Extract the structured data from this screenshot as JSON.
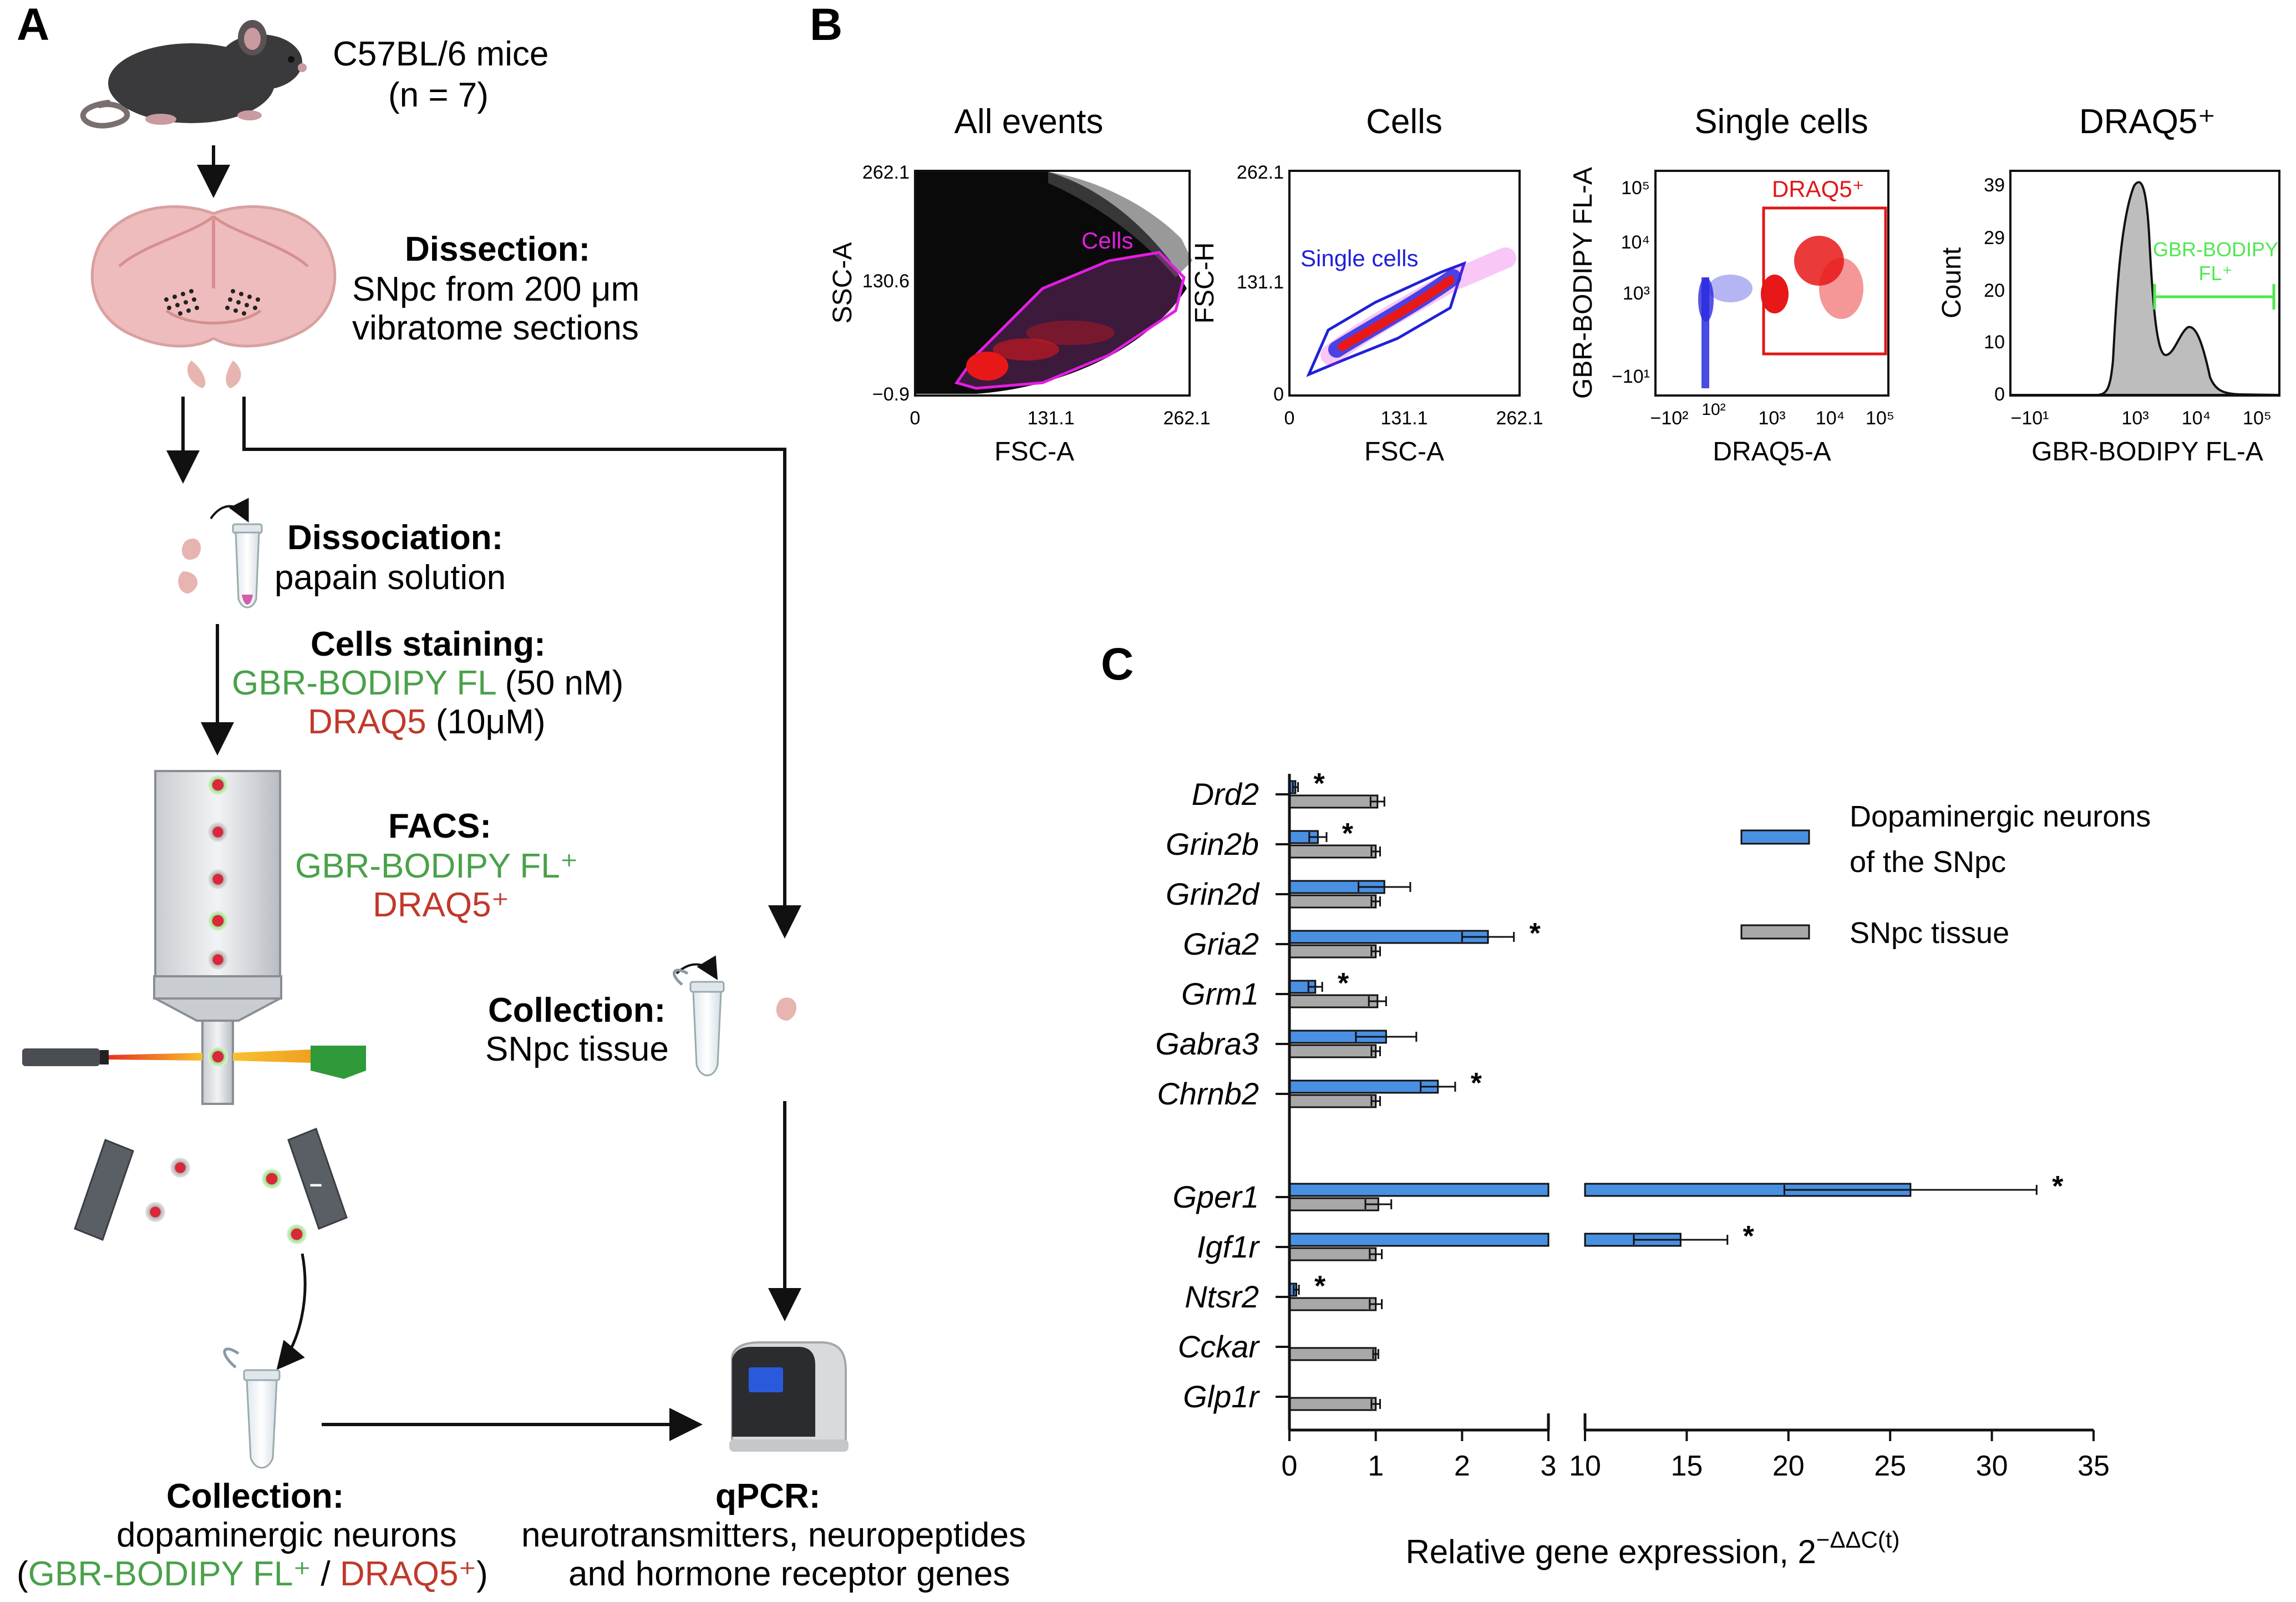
{
  "panels": {
    "a": {
      "letter": "A",
      "mice_title": "C57BL/6 mice",
      "mice_n": "(n = 7)",
      "dissection_title": "Dissection:",
      "dissection_l1": "SNpc from 200 μm",
      "dissection_l2": "vibratome sections",
      "dissociation_title": "Dissociation:",
      "dissociation_l1": "papain solution",
      "staining_title": "Cells staining:",
      "staining_dye1": "GBR-BODIPY FL",
      "staining_conc1": " (50 nM)",
      "staining_dye2": "DRAQ5",
      "staining_conc2": " (10μM)",
      "facs_title": "FACS:",
      "facs_l1": "GBR-BODIPY FL⁺",
      "facs_l2": "DRAQ5⁺",
      "coll_tissue_title": "Collection:",
      "coll_tissue_l1": "SNpc tissue",
      "coll_neur_title": "Collection:",
      "coll_neur_l1": "dopaminergic neurons",
      "coll_neur_open": "(",
      "coll_neur_dye1": "GBR-BODIPY FL⁺",
      "coll_neur_sep": " / ",
      "coll_neur_dye2": "DRAQ5⁺",
      "coll_neur_close": ")",
      "qpcr_title": "qPCR:",
      "qpcr_l1": "neurotransmitters, neuropeptides",
      "qpcr_l2": "and hormone receptor genes",
      "sort_plus": "+",
      "sort_minus": "−"
    },
    "b": {
      "letter": "B",
      "plot1": {
        "title": "All events",
        "xlabel": "FSC-A",
        "ylabel": "SSC-A",
        "yticks": [
          "262.1",
          "130.6",
          "−0.9"
        ],
        "xticks": [
          "0",
          "131.1",
          "262.1"
        ],
        "gate": "Cells"
      },
      "plot2": {
        "title": "Cells",
        "xlabel": "FSC-A",
        "ylabel": "FSC-H",
        "yticks": [
          "262.1",
          "131.1",
          "0"
        ],
        "xticks": [
          "0",
          "131.1",
          "262.1"
        ],
        "gate": "Single cells"
      },
      "plot3": {
        "title": "Single cells",
        "xlabel": "DRAQ5-A",
        "ylabel": "GBR-BODIPY FL-A",
        "yticks": [
          "10⁵",
          "10⁴",
          "10³",
          "−10¹"
        ],
        "xticks": [
          "−10²",
          "10³",
          "10⁴",
          "10⁵"
        ],
        "xticks_extra": "10²",
        "gate": "DRAQ5⁺"
      },
      "plot4": {
        "title": "DRAQ5⁺",
        "xlabel": "GBR-BODIPY FL-A",
        "ylabel": "Count",
        "yticks": [
          "39",
          "29",
          "20",
          "10",
          "0"
        ],
        "xticks": [
          "−10¹",
          "10³",
          "10⁴",
          "10⁵"
        ],
        "gate_l1": "GBR-BODIPY",
        "gate_l2": "FL⁺"
      }
    },
    "c": {
      "letter": "C",
      "xlabel": "Relative gene expression, 2",
      "xlabel_sup": "−ΔΔC(t)"
    }
  },
  "chart_data": {
    "type": "bar",
    "orientation": "horizontal",
    "categories": [
      "Drd2",
      "Grin2b",
      "Grin2d",
      "Gria2",
      "Grm1",
      "Gabra3",
      "Chrnb2",
      "Gper1",
      "Igf1r",
      "Ntsr2",
      "Cckar",
      "Glp1r"
    ],
    "series": [
      {
        "name": "Dopaminergic neurons of the SNpc",
        "legend_l1": "Dopaminergic neurons",
        "legend_l2": "of the SNpc",
        "color": "#4a90e2",
        "values": [
          0.07,
          0.33,
          1.1,
          2.3,
          0.3,
          1.12,
          1.72,
          26.0,
          14.7,
          0.08,
          0,
          0
        ],
        "errors": [
          0.03,
          0.1,
          0.3,
          0.3,
          0.08,
          0.35,
          0.2,
          6.2,
          2.3,
          0.03,
          0,
          0
        ]
      },
      {
        "name": "SNpc tissue",
        "color": "#a8a8a8",
        "values": [
          1.02,
          1.0,
          1.0,
          1.0,
          1.02,
          1.0,
          1.0,
          1.03,
          1.0,
          1.0,
          1.0,
          1.0
        ],
        "errors": [
          0.08,
          0.05,
          0.05,
          0.05,
          0.1,
          0.05,
          0.05,
          0.15,
          0.07,
          0.07,
          0.03,
          0.05
        ]
      }
    ],
    "significance": [
      "*",
      "*",
      "",
      "*",
      "*",
      "",
      "*",
      "*",
      "*",
      "*",
      "",
      ""
    ],
    "xaxis_segment1_ticks": [
      "0",
      "1",
      "2",
      "3"
    ],
    "xaxis_segment2_ticks": [
      "10",
      "15",
      "20",
      "25",
      "30",
      "35"
    ],
    "xlim_segment1": [
      0,
      3
    ],
    "xlim_segment2": [
      10,
      35
    ],
    "xlabel": "Relative gene expression, 2^−ΔΔC(t)"
  },
  "colors": {
    "green": "#4aa14a",
    "red": "#c0392b",
    "magenta": "#e21ee2",
    "blue": "#2020d8",
    "scatter_red": "#e81818",
    "lime": "#4ee84e"
  }
}
